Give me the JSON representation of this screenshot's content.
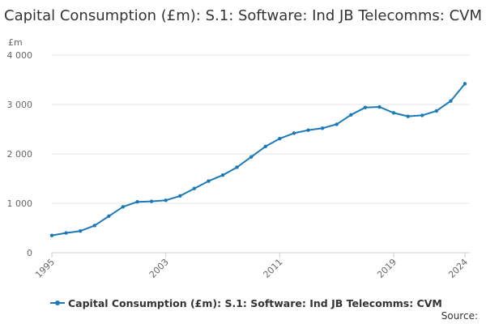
{
  "chart_data": {
    "type": "line",
    "title": "Capital Consumption (£m): S.1: Software: Ind JB Telecomms: CVM",
    "unit_label": "£m",
    "xlabel": "",
    "ylabel": "",
    "ylim": [
      0,
      4000
    ],
    "yticks": [
      0,
      1000,
      2000,
      3000,
      4000
    ],
    "ytick_labels": [
      "0",
      "1 000",
      "2 000",
      "3 000",
      "4 000"
    ],
    "xlim": [
      1995,
      2024
    ],
    "xticks": [
      1995,
      2003,
      2011,
      2019,
      2024
    ],
    "xtick_labels": [
      "1995",
      "2003",
      "2011",
      "2019",
      "2024"
    ],
    "grid": true,
    "legend_position": "bottom",
    "x": [
      1995,
      1996,
      1997,
      1998,
      1999,
      2000,
      2001,
      2002,
      2003,
      2004,
      2005,
      2006,
      2007,
      2008,
      2009,
      2010,
      2011,
      2012,
      2013,
      2014,
      2015,
      2016,
      2017,
      2018,
      2019,
      2020,
      2021,
      2022,
      2023,
      2024
    ],
    "series": [
      {
        "name": "Capital Consumption (£m): S.1: Software: Ind JB Telecomms: CVM",
        "color": "#1a7ab8",
        "values": [
          350,
          400,
          440,
          550,
          740,
          930,
          1030,
          1040,
          1060,
          1150,
          1300,
          1450,
          1570,
          1730,
          1940,
          2150,
          2310,
          2420,
          2480,
          2520,
          2600,
          2790,
          2940,
          2950,
          2830,
          2760,
          2780,
          2870,
          3070,
          3420
        ]
      }
    ]
  },
  "source_label": "Source:"
}
